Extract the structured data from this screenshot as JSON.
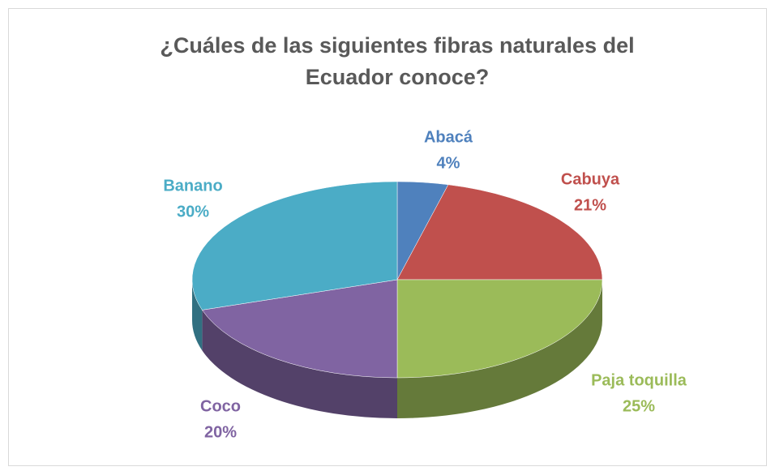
{
  "chart_data": {
    "type": "pie",
    "title": "¿Cuáles de las siguientes fibras naturales del Ecuador conoce?",
    "categories": [
      "Abacá",
      "Cabuya",
      "Paja toquilla",
      "Coco",
      "Banano"
    ],
    "values": [
      4,
      21,
      25,
      20,
      30
    ],
    "value_labels": [
      "4%",
      "21%",
      "25%",
      "20%",
      "30%"
    ],
    "colors": [
      "#4f81bd",
      "#c0504d",
      "#9bbb59",
      "#8064a2",
      "#4bacc6"
    ]
  }
}
